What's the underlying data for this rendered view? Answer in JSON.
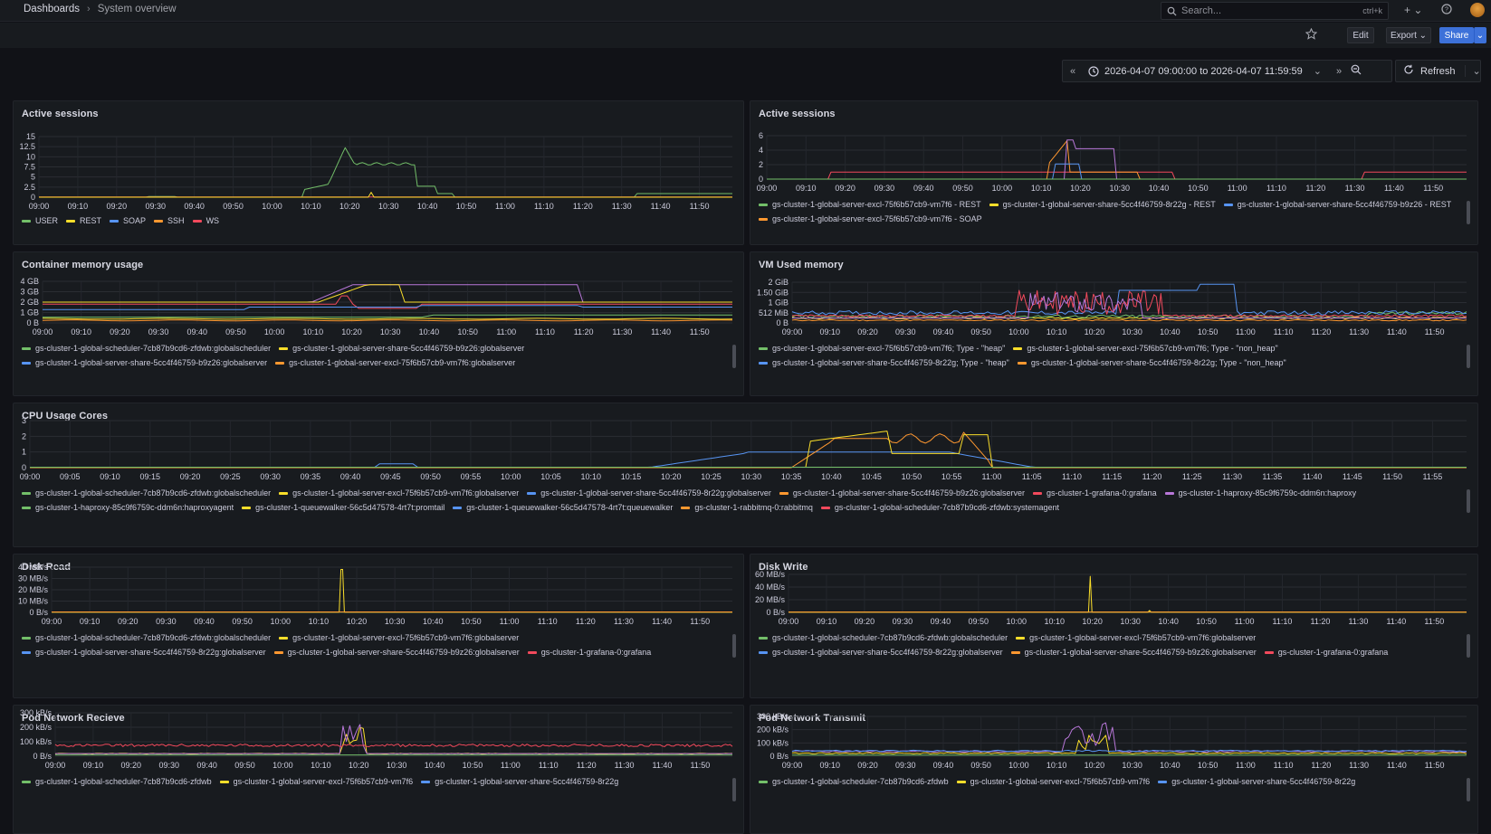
{
  "breadcrumb": {
    "root": "Dashboards",
    "separator": "›",
    "current": "System overview"
  },
  "search": {
    "placeholder": "Search...",
    "shortcut": "ctrl+k"
  },
  "toolbar": {
    "edit": "Edit",
    "export": "Export",
    "share": "Share"
  },
  "time_range": {
    "label": "2026-04-07 09:00:00 to 2026-04-07 11:59:59",
    "refresh": "Refresh"
  },
  "icons": {
    "search": "search-icon",
    "plus": "plus-icon",
    "help": "help-icon",
    "star": "star-icon",
    "clock": "clock-icon",
    "zoom_out": "zoom-out-icon",
    "refresh": "refresh-icon"
  },
  "colors": {
    "green": "#73bf69",
    "yellow": "#fade2a",
    "blue": "#5794f2",
    "orange": "#ff9830",
    "red": "#f2495c",
    "purple": "#b877d9"
  },
  "panels": {
    "active_sessions_1": {
      "title": "Active sessions",
      "yticks": [
        "15",
        "12.5",
        "10",
        "7.5",
        "5",
        "2.5",
        "0"
      ],
      "xticks": [
        "09:00",
        "09:10",
        "09:20",
        "09:30",
        "09:40",
        "09:50",
        "10:00",
        "10:10",
        "10:20",
        "10:30",
        "10:40",
        "10:50",
        "11:00",
        "11:10",
        "11:20",
        "11:30",
        "11:40",
        "11:50"
      ],
      "legend": [
        {
          "label": "USER",
          "color": "#73bf69"
        },
        {
          "label": "REST",
          "color": "#fade2a"
        },
        {
          "label": "SOAP",
          "color": "#5794f2"
        },
        {
          "label": "SSH",
          "color": "#ff9830"
        },
        {
          "label": "WS",
          "color": "#f2495c"
        }
      ]
    },
    "active_sessions_2": {
      "title": "Active sessions",
      "yticks": [
        "6",
        "4",
        "2",
        "0"
      ],
      "xticks": [
        "09:00",
        "09:10",
        "09:20",
        "09:30",
        "09:40",
        "09:50",
        "10:00",
        "10:10",
        "10:20",
        "10:30",
        "10:40",
        "10:50",
        "11:00",
        "11:10",
        "11:20",
        "11:30",
        "11:40",
        "11:50"
      ],
      "legend": [
        {
          "label": "gs-cluster-1-global-server-excl-75f6b57cb9-vm7f6 - REST",
          "color": "#73bf69"
        },
        {
          "label": "gs-cluster-1-global-server-share-5cc4f46759-8r22g - REST",
          "color": "#fade2a"
        },
        {
          "label": "gs-cluster-1-global-server-share-5cc4f46759-b9z26 - REST",
          "color": "#5794f2"
        },
        {
          "label": "gs-cluster-1-global-server-excl-75f6b57cb9-vm7f6 - SOAP",
          "color": "#ff9830"
        }
      ]
    },
    "container_memory": {
      "title": "Container memory usage",
      "yticks": [
        "4 GB",
        "3 GB",
        "2 GB",
        "1 GB",
        "0 B"
      ],
      "xticks": [
        "09:00",
        "09:10",
        "09:20",
        "09:30",
        "09:40",
        "09:50",
        "10:00",
        "10:10",
        "10:20",
        "10:30",
        "10:40",
        "10:50",
        "11:00",
        "11:10",
        "11:20",
        "11:30",
        "11:40",
        "11:50"
      ],
      "legend": [
        {
          "label": "gs-cluster-1-global-scheduler-7cb87b9cd6-zfdwb:globalscheduler",
          "color": "#73bf69"
        },
        {
          "label": "gs-cluster-1-global-server-share-5cc4f46759-b9z26:globalserver",
          "color": "#fade2a"
        },
        {
          "label": "gs-cluster-1-global-server-share-5cc4f46759-b9z26:globalserver",
          "color": "#5794f2"
        },
        {
          "label": "gs-cluster-1-global-server-excl-75f6b57cb9-vm7f6:globalserver",
          "color": "#ff9830"
        }
      ]
    },
    "vm_memory": {
      "title": "VM Used memory",
      "yticks": [
        "2 GiB",
        "1.50 GiB",
        "1 GiB",
        "512 MiB",
        "0 B"
      ],
      "xticks": [
        "09:00",
        "09:10",
        "09:20",
        "09:30",
        "09:40",
        "09:50",
        "10:00",
        "10:10",
        "10:20",
        "10:30",
        "10:40",
        "10:50",
        "11:00",
        "11:10",
        "11:20",
        "11:30",
        "11:40",
        "11:50"
      ],
      "legend": [
        {
          "label": "gs-cluster-1-global-server-excl-75f6b57cb9-vm7f6; Type - \"heap\"",
          "color": "#73bf69"
        },
        {
          "label": "gs-cluster-1-global-server-excl-75f6b57cb9-vm7f6; Type - \"non_heap\"",
          "color": "#fade2a"
        },
        {
          "label": "gs-cluster-1-global-server-share-5cc4f46759-8r22g; Type - \"heap\"",
          "color": "#5794f2"
        },
        {
          "label": "gs-cluster-1-global-server-share-5cc4f46759-8r22g; Type - \"non_heap\"",
          "color": "#ff9830"
        }
      ]
    },
    "cpu": {
      "title": "CPU Usage Cores",
      "yticks": [
        "3",
        "2",
        "1",
        "0"
      ],
      "xticks": [
        "09:00",
        "09:05",
        "09:10",
        "09:15",
        "09:20",
        "09:25",
        "09:30",
        "09:35",
        "09:40",
        "09:45",
        "09:50",
        "09:55",
        "10:00",
        "10:05",
        "10:10",
        "10:15",
        "10:20",
        "10:25",
        "10:30",
        "10:35",
        "10:40",
        "10:45",
        "10:50",
        "10:55",
        "11:00",
        "11:05",
        "11:10",
        "11:15",
        "11:20",
        "11:25",
        "11:30",
        "11:35",
        "11:40",
        "11:45",
        "11:50",
        "11:55"
      ],
      "legend": [
        {
          "label": "gs-cluster-1-global-scheduler-7cb87b9cd6-zfdwb:globalscheduler",
          "color": "#73bf69"
        },
        {
          "label": "gs-cluster-1-global-server-excl-75f6b57cb9-vm7f6:globalserver",
          "color": "#fade2a"
        },
        {
          "label": "gs-cluster-1-global-server-share-5cc4f46759-8r22g:globalserver",
          "color": "#5794f2"
        },
        {
          "label": "gs-cluster-1-global-server-share-5cc4f46759-b9z26:globalserver",
          "color": "#ff9830"
        },
        {
          "label": "gs-cluster-1-grafana-0:grafana",
          "color": "#f2495c"
        },
        {
          "label": "gs-cluster-1-haproxy-85c9f6759c-ddm6n:haproxy",
          "color": "#b877d9"
        },
        {
          "label": "gs-cluster-1-haproxy-85c9f6759c-ddm6n:haproxyagent",
          "color": "#73bf69"
        },
        {
          "label": "gs-cluster-1-queuewalker-56c5d47578-4rt7t:promtail",
          "color": "#fade2a"
        },
        {
          "label": "gs-cluster-1-queuewalker-56c5d47578-4rt7t:queuewalker",
          "color": "#5794f2"
        },
        {
          "label": "gs-cluster-1-rabbitmq-0:rabbitmq",
          "color": "#ff9830"
        },
        {
          "label": "gs-cluster-1-global-scheduler-7cb87b9cd6-zfdwb:systemagent",
          "color": "#f2495c"
        }
      ]
    },
    "disk_read": {
      "title": "Disk Read",
      "yticks": [
        "40 MB/s",
        "30 MB/s",
        "20 MB/s",
        "10 MB/s",
        "0 B/s"
      ],
      "xticks": [
        "09:00",
        "09:10",
        "09:20",
        "09:30",
        "09:40",
        "09:50",
        "10:00",
        "10:10",
        "10:20",
        "10:30",
        "10:40",
        "10:50",
        "11:00",
        "11:10",
        "11:20",
        "11:30",
        "11:40",
        "11:50"
      ],
      "legend": [
        {
          "label": "gs-cluster-1-global-scheduler-7cb87b9cd6-zfdwb:globalscheduler",
          "color": "#73bf69"
        },
        {
          "label": "gs-cluster-1-global-server-excl-75f6b57cb9-vm7f6:globalserver",
          "color": "#fade2a"
        },
        {
          "label": "gs-cluster-1-global-server-share-5cc4f46759-8r22g:globalserver",
          "color": "#5794f2"
        },
        {
          "label": "gs-cluster-1-global-server-share-5cc4f46759-b9z26:globalserver",
          "color": "#ff9830"
        },
        {
          "label": "gs-cluster-1-grafana-0:grafana",
          "color": "#f2495c"
        }
      ]
    },
    "disk_write": {
      "title": "Disk Write",
      "yticks": [
        "60 MB/s",
        "40 MB/s",
        "20 MB/s",
        "0 B/s"
      ],
      "xticks": [
        "09:00",
        "09:10",
        "09:20",
        "09:30",
        "09:40",
        "09:50",
        "10:00",
        "10:10",
        "10:20",
        "10:30",
        "10:40",
        "10:50",
        "11:00",
        "11:10",
        "11:20",
        "11:30",
        "11:40",
        "11:50"
      ],
      "legend": [
        {
          "label": "gs-cluster-1-global-scheduler-7cb87b9cd6-zfdwb:globalscheduler",
          "color": "#73bf69"
        },
        {
          "label": "gs-cluster-1-global-server-excl-75f6b57cb9-vm7f6:globalserver",
          "color": "#fade2a"
        },
        {
          "label": "gs-cluster-1-global-server-share-5cc4f46759-8r22g:globalserver",
          "color": "#5794f2"
        },
        {
          "label": "gs-cluster-1-global-server-share-5cc4f46759-b9z26:globalserver",
          "color": "#ff9830"
        },
        {
          "label": "gs-cluster-1-grafana-0:grafana",
          "color": "#f2495c"
        }
      ]
    },
    "net_rx": {
      "title": "Pod Network Recieve",
      "yticks": [
        "300 kB/s",
        "200 kB/s",
        "100 kB/s",
        "0 B/s"
      ],
      "xticks": [
        "09:00",
        "09:10",
        "09:20",
        "09:30",
        "09:40",
        "09:50",
        "10:00",
        "10:10",
        "10:20",
        "10:30",
        "10:40",
        "10:50",
        "11:00",
        "11:10",
        "11:20",
        "11:30",
        "11:40",
        "11:50"
      ],
      "legend": [
        {
          "label": "gs-cluster-1-global-scheduler-7cb87b9cd6-zfdwb",
          "color": "#73bf69"
        },
        {
          "label": "gs-cluster-1-global-server-excl-75f6b57cb9-vm7f6",
          "color": "#fade2a"
        },
        {
          "label": "gs-cluster-1-global-server-share-5cc4f46759-8r22g",
          "color": "#5794f2"
        }
      ]
    },
    "net_tx": {
      "title": "Pod Network Transmit",
      "yticks": [
        "300 kB/s",
        "200 kB/s",
        "100 kB/s",
        "0 B/s"
      ],
      "xticks": [
        "09:00",
        "09:10",
        "09:20",
        "09:30",
        "09:40",
        "09:50",
        "10:00",
        "10:10",
        "10:20",
        "10:30",
        "10:40",
        "10:50",
        "11:00",
        "11:10",
        "11:20",
        "11:30",
        "11:40",
        "11:50"
      ],
      "legend": [
        {
          "label": "gs-cluster-1-global-scheduler-7cb87b9cd6-zfdwb",
          "color": "#73bf69"
        },
        {
          "label": "gs-cluster-1-global-server-excl-75f6b57cb9-vm7f6",
          "color": "#fade2a"
        },
        {
          "label": "gs-cluster-1-global-server-share-5cc4f46759-8r22g",
          "color": "#5794f2"
        }
      ]
    }
  }
}
